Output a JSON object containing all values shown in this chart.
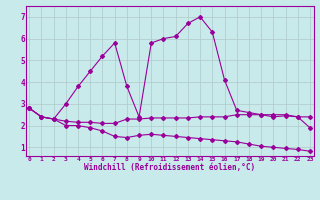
{
  "xlabel": "Windchill (Refroidissement éolien,°C)",
  "background_color": "#c8eaea",
  "grid_color": "#b0c8c8",
  "line_color": "#990099",
  "x_ticks": [
    0,
    1,
    2,
    3,
    4,
    5,
    6,
    7,
    8,
    9,
    10,
    11,
    12,
    13,
    14,
    15,
    16,
    17,
    18,
    19,
    20,
    21,
    22,
    23
  ],
  "y_ticks": [
    1,
    2,
    3,
    4,
    5,
    6,
    7
  ],
  "ylim": [
    0.6,
    7.5
  ],
  "xlim": [
    -0.3,
    23.3
  ],
  "line1_x": [
    0,
    1,
    2,
    3,
    4,
    5,
    6,
    7,
    8,
    9,
    10,
    11,
    12,
    13,
    14,
    15,
    16,
    17,
    18,
    19,
    20,
    21,
    22,
    23
  ],
  "line1_y": [
    2.8,
    2.4,
    2.3,
    3.0,
    3.8,
    4.5,
    5.2,
    5.8,
    3.8,
    2.4,
    5.8,
    6.0,
    6.1,
    6.7,
    7.0,
    6.3,
    4.1,
    2.7,
    2.6,
    2.5,
    2.5,
    2.5,
    2.4,
    1.9
  ],
  "line2_x": [
    0,
    1,
    2,
    3,
    4,
    5,
    6,
    7,
    8,
    9,
    10,
    11,
    12,
    13,
    14,
    15,
    16,
    17,
    18,
    19,
    20,
    21,
    22,
    23
  ],
  "line2_y": [
    2.8,
    2.4,
    2.3,
    2.2,
    2.15,
    2.15,
    2.1,
    2.1,
    2.3,
    2.3,
    2.35,
    2.35,
    2.35,
    2.35,
    2.4,
    2.4,
    2.4,
    2.5,
    2.5,
    2.5,
    2.4,
    2.45,
    2.4,
    2.4
  ],
  "line3_x": [
    0,
    1,
    2,
    3,
    4,
    5,
    6,
    7,
    8,
    9,
    10,
    11,
    12,
    13,
    14,
    15,
    16,
    17,
    18,
    19,
    20,
    21,
    22,
    23
  ],
  "line3_y": [
    2.8,
    2.4,
    2.3,
    2.0,
    2.0,
    1.9,
    1.75,
    1.5,
    1.45,
    1.55,
    1.6,
    1.55,
    1.5,
    1.45,
    1.4,
    1.35,
    1.3,
    1.25,
    1.15,
    1.05,
    1.0,
    0.95,
    0.9,
    0.82
  ]
}
